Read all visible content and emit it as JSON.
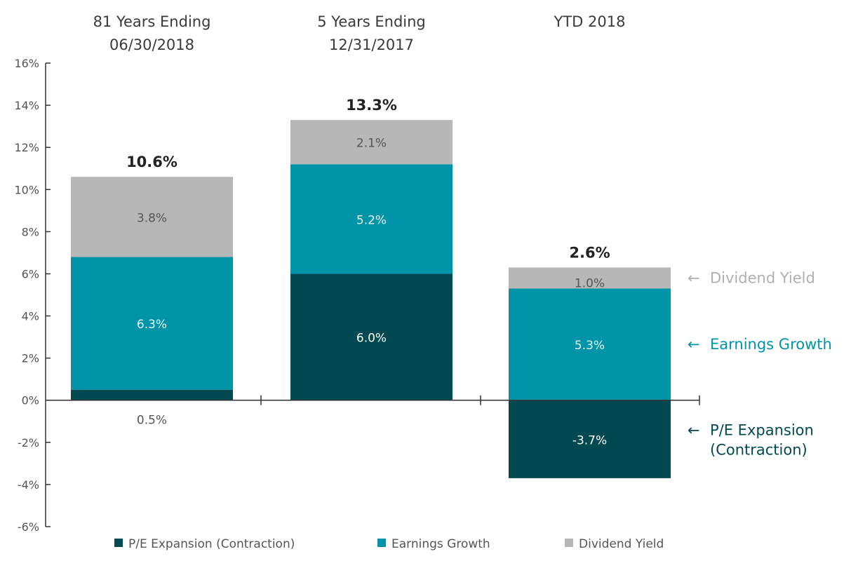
{
  "colors": {
    "pe": "#024951",
    "earnings": "#0194a9",
    "dividend": "#b7b7b7",
    "axis": "#333333"
  },
  "chart_data": {
    "type": "bar",
    "stacked": true,
    "categories": [
      [
        "81 Years Ending",
        "06/30/2018"
      ],
      [
        "5 Years Ending",
        "12/31/2017"
      ],
      [
        "YTD 2018"
      ]
    ],
    "series": [
      {
        "key": "pe",
        "name": "P/E Expansion (Contraction)",
        "values": [
          0.5,
          6.0,
          -3.7
        ],
        "labels": [
          "0.5%",
          "6.0%",
          "-3.7%"
        ]
      },
      {
        "key": "earnings",
        "name": "Earnings Growth",
        "values": [
          6.3,
          5.2,
          5.3
        ],
        "labels": [
          "6.3%",
          "5.2%",
          "5.3%"
        ]
      },
      {
        "key": "dividend",
        "name": "Dividend Yield",
        "values": [
          3.8,
          2.1,
          1.0
        ],
        "labels": [
          "3.8%",
          "2.1%",
          "1.0%"
        ]
      }
    ],
    "totals": [
      "10.6%",
      "13.3%",
      "2.6%"
    ],
    "ylim": [
      -6,
      16
    ],
    "yticks": [
      -6,
      -4,
      -2,
      0,
      2,
      4,
      6,
      8,
      10,
      12,
      14,
      16
    ],
    "ytick_labels": [
      "-6%",
      "-4%",
      "-2%",
      "0%",
      "2%",
      "4%",
      "6%",
      "8%",
      "10%",
      "12%",
      "14%",
      "16%"
    ],
    "grid": false,
    "legend_position": "bottom",
    "annotations": [
      {
        "key": "dividend",
        "arrow": "←",
        "lines": [
          "Dividend Yield"
        ]
      },
      {
        "key": "earnings",
        "arrow": "←",
        "lines": [
          "Earnings Growth"
        ]
      },
      {
        "key": "pe",
        "arrow": "←",
        "lines": [
          "P/E Expansion",
          "(Contraction)"
        ]
      }
    ]
  }
}
